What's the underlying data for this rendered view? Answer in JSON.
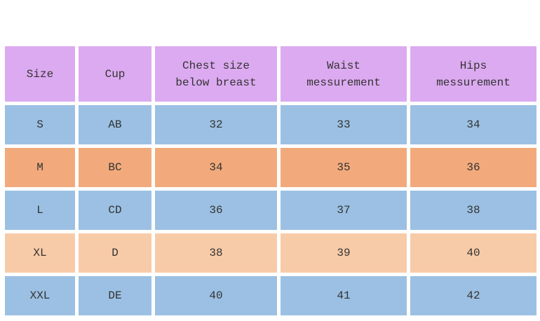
{
  "table": {
    "title": "size-chart",
    "columns": [
      {
        "key": "size",
        "label": "Size"
      },
      {
        "key": "cup",
        "label": "Cup"
      },
      {
        "key": "chest",
        "label": "Chest size\nbelow breast"
      },
      {
        "key": "waist",
        "label": "Waist\nmessurement"
      },
      {
        "key": "hips",
        "label": "Hips\nmessurement"
      }
    ],
    "rows": [
      {
        "variant": "blue",
        "cells": {
          "size": "S",
          "cup": "AB",
          "chest": "32",
          "waist": "33",
          "hips": "34"
        }
      },
      {
        "variant": "orange",
        "cells": {
          "size": "M",
          "cup": "BC",
          "chest": "34",
          "waist": "35",
          "hips": "36"
        }
      },
      {
        "variant": "blue",
        "cells": {
          "size": "L",
          "cup": "CD",
          "chest": "36",
          "waist": "37",
          "hips": "38"
        }
      },
      {
        "variant": "peach",
        "cells": {
          "size": "XL",
          "cup": "D",
          "chest": "38",
          "waist": "39",
          "hips": "40"
        }
      },
      {
        "variant": "blue",
        "cells": {
          "size": "XXL",
          "cup": "DE",
          "chest": "40",
          "waist": "41",
          "hips": "42"
        }
      }
    ],
    "colors": {
      "header": "#dcaaf0",
      "row_blue": "#9bc0e3",
      "row_orange": "#f2aa7c",
      "row_peach": "#f8cba8",
      "grid": "#ffffff",
      "background": "#ffffff",
      "text": "#333333"
    }
  }
}
